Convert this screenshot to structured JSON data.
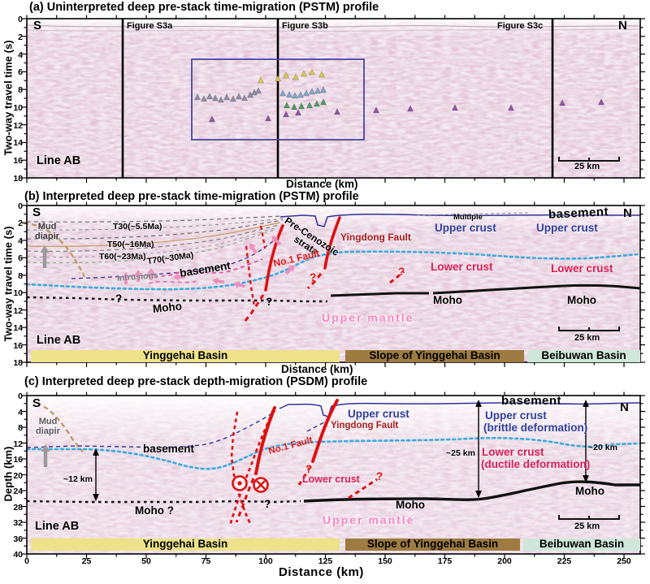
{
  "panel_a": {
    "title": "(a) Uninterpreted deep pre-stack time-migration (PSTM) profile",
    "south": "S",
    "north": "N",
    "fig_s3a": "Figure S3a",
    "fig_s3b": "Figure S3b",
    "fig_s3c": "Figure S3c",
    "line_label": "Line AB",
    "scale_bar": "25 km",
    "xlabel": "Distance (km)",
    "ylabel": "Two-way travel time (s)",
    "yticks": [
      "0",
      "2",
      "4",
      "6",
      "8",
      "10",
      "12",
      "14",
      "16",
      "18"
    ],
    "marker_colors": {
      "yellow": "#d8c84f",
      "gray": "#8e8fa6",
      "bluegray": "#7fa8c9",
      "green": "#4f9b63",
      "purple": "#8f55a8"
    },
    "markers": [
      {
        "c": "yellow",
        "pts": [
          [
            321,
            99
          ],
          [
            342,
            97
          ],
          [
            352,
            93
          ],
          [
            364,
            95
          ],
          [
            374,
            91
          ],
          [
            384,
            89
          ],
          [
            396,
            92
          ]
        ]
      },
      {
        "c": "gray",
        "pts": [
          [
            243,
            120
          ],
          [
            251,
            122
          ],
          [
            258,
            119
          ],
          [
            265,
            121
          ],
          [
            272,
            123
          ],
          [
            279,
            120
          ],
          [
            287,
            122
          ],
          [
            294,
            119
          ],
          [
            301,
            121
          ],
          [
            308,
            117
          ],
          [
            313,
            114
          ],
          [
            318,
            112
          ]
        ]
      },
      {
        "c": "bluegray",
        "pts": [
          [
            348,
            115
          ],
          [
            356,
            117
          ],
          [
            363,
            118
          ],
          [
            370,
            117
          ],
          [
            377,
            115
          ],
          [
            384,
            113
          ],
          [
            391,
            112
          ],
          [
            398,
            111
          ]
        ]
      },
      {
        "c": "green",
        "pts": [
          [
            353,
            130
          ],
          [
            362,
            132
          ],
          [
            371,
            131
          ],
          [
            381,
            130
          ],
          [
            390,
            128
          ],
          [
            398,
            126
          ]
        ]
      },
      {
        "c": "purple",
        "pts": [
          [
            261,
            147
          ],
          [
            330,
            146
          ],
          [
            352,
            141
          ],
          [
            367,
            139
          ],
          [
            415,
            138
          ],
          [
            463,
            136
          ],
          [
            505,
            134
          ],
          [
            560,
            133
          ],
          [
            629,
            133
          ],
          [
            692,
            127
          ],
          [
            740,
            126
          ]
        ]
      }
    ]
  },
  "panel_b": {
    "title": "(b) Interpreted deep pre-stack time-migration (PSTM) profile",
    "south": "S",
    "north": "N",
    "mud_diapir": "Mud diapir",
    "t30": "T30(~5.5Ma)",
    "t50": "T50(~16Ma)",
    "t60": "T60(~23Ma)",
    "t70": "T70(~30Ma)",
    "basement1": "basement",
    "basement2": "basement",
    "intrusions": "Intrusions",
    "pre_cenozoic": "Pre-Cenozoic strata",
    "no1_fault": "No.1 Fault",
    "yingdong_fault": "Yingdong Fault",
    "multiple": "Multiple",
    "upper_crust_1": "Upper crust",
    "upper_crust_2": "Upper crust",
    "lower_crust_1": "Lower crust",
    "lower_crust_2": "Lower crust",
    "moho_1": "Moho",
    "moho_2": "Moho",
    "moho_3": "Moho",
    "upper_mantle": "Upper mantle",
    "q1": "?",
    "q2": "?",
    "q3": "?",
    "q4": "?",
    "line_label": "Line AB",
    "scale_bar": "25 km",
    "xlabel": "Distance (km)",
    "ylabel": "Two-way travel time (s)",
    "yticks": [
      "0",
      "2",
      "4",
      "6",
      "8",
      "10",
      "12",
      "14",
      "16",
      "18"
    ],
    "basins": {
      "yinggehai": "Yinggehai Basin",
      "slope": "Slope of Yinggehai Basin",
      "beibuwan": "Beibuwan Basin"
    },
    "pink_arrows": [
      [
        155,
        336,
        -90
      ],
      [
        170,
        333,
        -90
      ],
      [
        186,
        331,
        -90
      ],
      [
        214,
        341,
        180
      ],
      [
        262,
        345,
        190
      ],
      [
        288,
        349,
        195
      ],
      [
        335,
        291,
        -135
      ],
      [
        362,
        327,
        -45
      ],
      [
        308,
        300,
        -120
      ]
    ]
  },
  "panel_c": {
    "title": "(c) Interpreted deep pre-stack depth-migration (PSDM) profile",
    "south": "S",
    "north": "N",
    "mud_diapir": "Mud diapir",
    "basement1": "basement",
    "basement2": "basement",
    "upper_crust_1": "Upper crust",
    "upper_crust_2": "Upper crust",
    "brittle": "(brittle deformation)",
    "lower_crust_1": "Lower crust",
    "lower_crust_2": "Lower crust",
    "ductile": "(ductile deformation)",
    "no1_fault": "No.1 Fault",
    "yingdong_fault": "Yingdong Fault",
    "km12": "~12 km",
    "km25": "~25 km",
    "km20": "~20 km",
    "moho_q": "Moho ?",
    "moho_2": "Moho",
    "moho_3": "Moho",
    "upper_mantle": "Upper mantle",
    "q1": "?",
    "q2": "?",
    "q3": "?",
    "line_label": "Line AB",
    "scale_bar": "25 km",
    "xlabel": "Distance (km)",
    "ylabel": "Depth (km)",
    "yticks": [
      "0",
      "4",
      "8",
      "12",
      "16",
      "20",
      "24",
      "28",
      "32",
      "36",
      "40"
    ],
    "xticks": [
      "0",
      "25",
      "50",
      "75",
      "100",
      "125",
      "150",
      "175",
      "200",
      "225",
      "250"
    ],
    "basins": {
      "yinggehai": "Yinggehai Basin",
      "slope": "Slope of Yinggehai Basin",
      "beibuwan": "Beibuwan Basin"
    }
  },
  "colors": {
    "fault_red": "#dd1111",
    "crust_blue": "#2f3f9e",
    "crust_crimson": "#dc1a52",
    "yingdong_dark_red": "#a81c1c",
    "cyan_horizon": "#39acdf",
    "navy_line": "#32329a",
    "tan_diapir": "#c49a62",
    "magenta_intrusion": "#e055a0",
    "pink_mantle": "#f687bf",
    "band_yellow": "#ede289",
    "band_brown": "#9e7b40",
    "band_teal": "#cfe7da",
    "seismic_bg": "#f3eaf1"
  }
}
